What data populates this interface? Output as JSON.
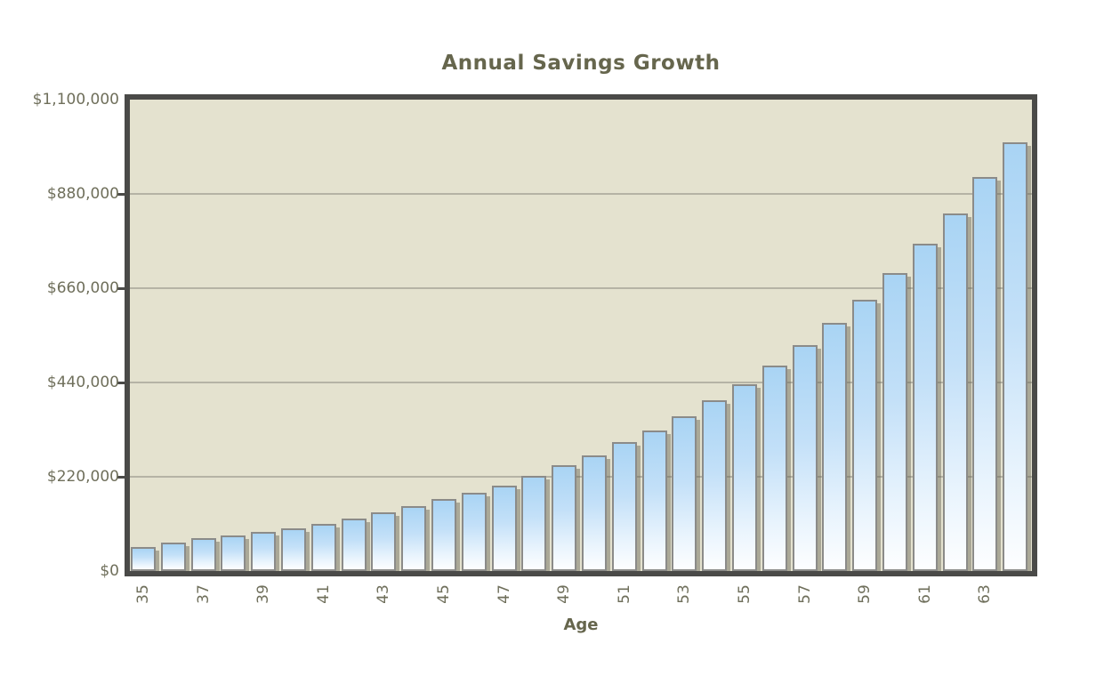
{
  "chart_data": {
    "type": "bar",
    "title": "Annual Savings Growth",
    "xlabel": "Age",
    "ylabel": "",
    "ylim": [
      0,
      1100000
    ],
    "grid": true,
    "legend": "none",
    "categories": [
      35,
      36,
      37,
      38,
      39,
      40,
      41,
      42,
      43,
      44,
      45,
      46,
      47,
      48,
      49,
      50,
      51,
      52,
      53,
      54,
      55,
      56,
      57,
      58,
      59,
      60,
      61,
      62,
      63,
      64
    ],
    "values": [
      55000,
      66000,
      76000,
      83000,
      92000,
      100000,
      109000,
      122000,
      137000,
      152000,
      168000,
      183000,
      199000,
      223000,
      246000,
      270000,
      300000,
      327000,
      361000,
      399000,
      436000,
      480000,
      528000,
      580000,
      634000,
      696000,
      763000,
      834000,
      919000,
      1000000
    ],
    "y_ticks": [
      {
        "value": 0,
        "label": "$0"
      },
      {
        "value": 220000,
        "label": "$220,000"
      },
      {
        "value": 440000,
        "label": "$440,000"
      },
      {
        "value": 660000,
        "label": "$660,000"
      },
      {
        "value": 880000,
        "label": "$880,000"
      },
      {
        "value": 1100000,
        "label": "$1,100,000"
      }
    ],
    "x_ticks_shown": [
      "35",
      "37",
      "39",
      "41",
      "43",
      "45",
      "47",
      "49",
      "51",
      "53",
      "55",
      "57",
      "59",
      "61",
      "63"
    ]
  },
  "colors": {
    "plot_background": "#e4e2cf",
    "frame_border": "#4a4a48",
    "gridline": "#b5b3a5",
    "bar_gradient_top": "#a9d4f4",
    "bar_gradient_bottom": "#fdfeff",
    "bar_border": "#8b8b89",
    "label_text": "#6f6f5b",
    "title_text": "#66664d"
  }
}
